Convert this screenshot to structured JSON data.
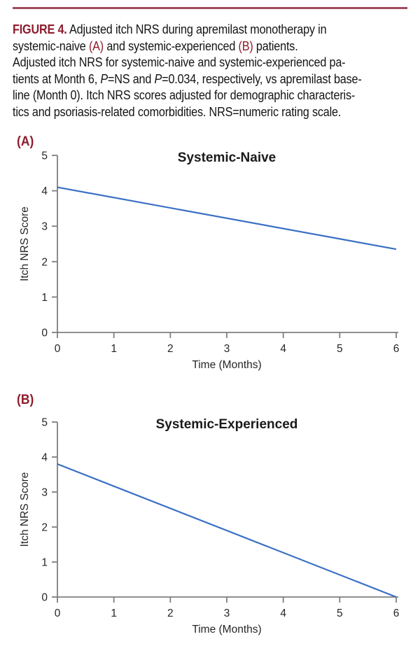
{
  "page_type": "journal-figure",
  "colors": {
    "rule": "#A24A5C",
    "maroon_text": "#8E1C2C",
    "line_blue": "#3A6FC4",
    "axis_gray": "#7F7F7F",
    "tick_text": "#262626",
    "title_text": "#1A1A1A"
  },
  "caption": {
    "lines": [
      [
        {
          "t": "FIGURE 4.",
          "s": "figlabel"
        },
        {
          "t": " Adjusted itch NRS during apremilast monotherapy in",
          "s": "n"
        }
      ],
      [
        {
          "t": "systemic-naive ",
          "s": "n"
        },
        {
          "t": "(A)",
          "s": "maroon"
        },
        {
          "t": " and systemic-experienced ",
          "s": "n"
        },
        {
          "t": "(B)",
          "s": "maroon"
        },
        {
          "t": " patients.",
          "s": "n"
        }
      ],
      [
        {
          "t": "Adjusted itch NRS for systemic-naive and systemic-experienced pa-",
          "s": "n"
        }
      ],
      [
        {
          "t": "tients at Month 6, ",
          "s": "n"
        },
        {
          "t": "P",
          "s": "i"
        },
        {
          "t": "=NS and ",
          "s": "n"
        },
        {
          "t": "P",
          "s": "i"
        },
        {
          "t": "=0.034, respectively, vs apremilast base-",
          "s": "n"
        }
      ],
      [
        {
          "t": "line (Month 0). Itch NRS scores adjusted for demographic characteris-",
          "s": "n"
        }
      ],
      [
        {
          "t": "tics and psoriasis-related comorbidities. NRS=numeric rating scale.",
          "s": "n"
        }
      ]
    ]
  },
  "chart_data": [
    {
      "type": "line",
      "panel_label": "(A)",
      "title": "Systemic-Naive",
      "xlabel": "Time (Months)",
      "ylabel": "Itch NRS Score",
      "xlim": [
        0,
        6
      ],
      "ylim": [
        0,
        5
      ],
      "xticks": [
        0,
        1,
        2,
        3,
        4,
        5,
        6
      ],
      "yticks": [
        0,
        1,
        2,
        3,
        4,
        5
      ],
      "grid": false,
      "legend": "none",
      "p_vs_baseline_month0": "P=NS",
      "series": [
        {
          "name": "Adjusted itch NRS (systemic-naive)",
          "x": [
            0,
            6
          ],
          "y": [
            4.1,
            2.35
          ]
        }
      ]
    },
    {
      "type": "line",
      "panel_label": "(B)",
      "title": "Systemic-Experienced",
      "xlabel": "Time (Months)",
      "ylabel": "Itch NRS Score",
      "xlim": [
        0,
        6
      ],
      "ylim": [
        0,
        5
      ],
      "xticks": [
        0,
        1,
        2,
        3,
        4,
        5,
        6
      ],
      "yticks": [
        0,
        1,
        2,
        3,
        4,
        5
      ],
      "grid": false,
      "legend": "none",
      "p_vs_baseline_month0": "P=0.034",
      "series": [
        {
          "name": "Adjusted itch NRS (systemic-experienced)",
          "x": [
            0,
            6
          ],
          "y": [
            3.8,
            0.0
          ]
        }
      ]
    }
  ]
}
